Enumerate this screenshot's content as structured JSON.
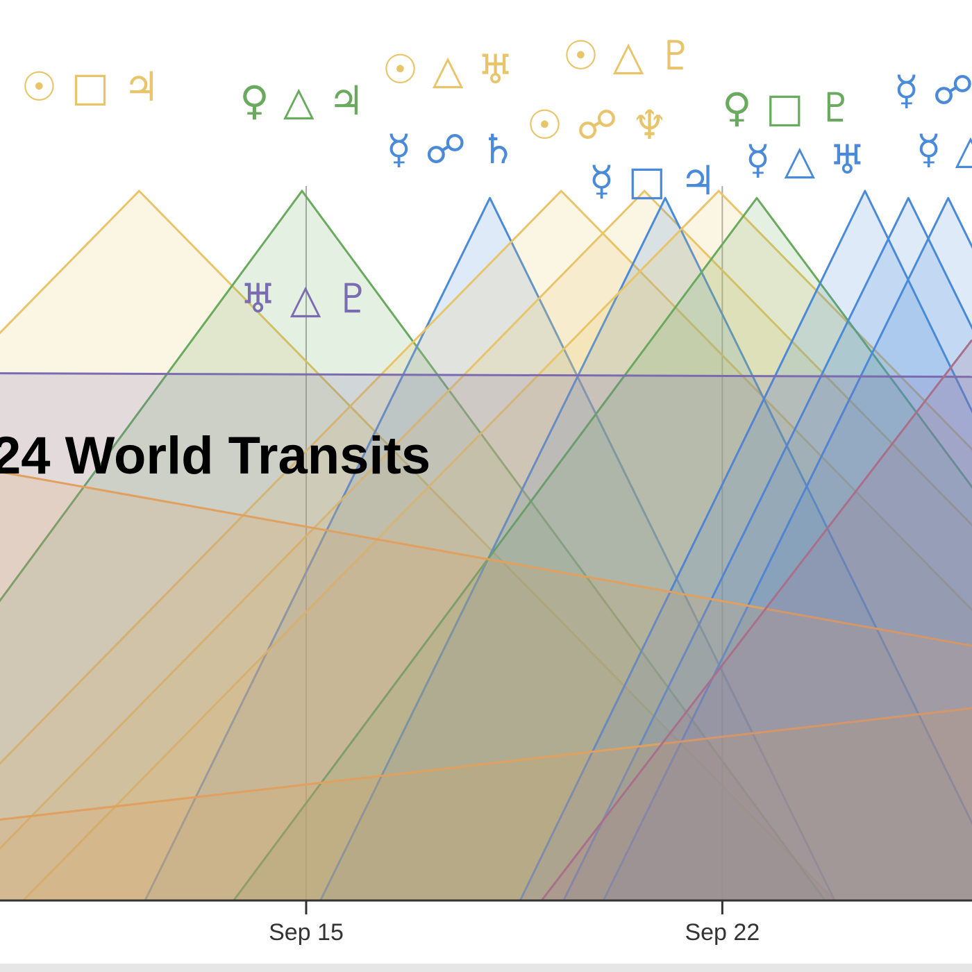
{
  "chart_data": {
    "type": "area",
    "title": "24 World Transits",
    "xlim": [
      9.85,
      26.2
    ],
    "ylim": [
      0,
      100
    ],
    "xticks": [
      {
        "value": 15,
        "label": "Sep 15"
      },
      {
        "value": 22,
        "label": "Sep 22"
      }
    ],
    "grid": true,
    "series": [
      {
        "color": "#e8c56b",
        "label": "☉ □ ♃",
        "x": [
          0.49,
          12.19,
          23.89
        ],
        "values": [
          0,
          100,
          0
        ]
      },
      {
        "color": "#6aaa5f",
        "label": "♀ △ ♃",
        "x": [
          6.13,
          14.93,
          23.73
        ],
        "values": [
          0,
          100,
          0
        ]
      },
      {
        "color": "#4a8ad8",
        "label": "☿ ☍ ♄",
        "x": [
          12.29,
          18.09,
          23.89
        ],
        "values": [
          0,
          99,
          0
        ]
      },
      {
        "color": "#e8c56b",
        "label": "☉ △ ♅",
        "x": [
          7.59,
          19.29,
          30.99
        ],
        "values": [
          0,
          100,
          0
        ]
      },
      {
        "color": "#e8c56b",
        "label": "☉ △ ♇",
        "x": [
          8.99,
          20.69,
          32.39
        ],
        "values": [
          0,
          100,
          0
        ]
      },
      {
        "color": "#4a8ad8",
        "label": "☿ □ ♃",
        "x": [
          15.24,
          21.04,
          26.84
        ],
        "values": [
          0,
          99,
          0
        ]
      },
      {
        "color": "#e8c56b",
        "label": "☉ ☍ ♆",
        "x": [
          10.24,
          21.94,
          33.64
        ],
        "values": [
          0,
          100,
          0
        ]
      },
      {
        "color": "#6aaa5f",
        "label": "♀ □ ♇",
        "x": [
          13.78,
          22.58,
          31.38
        ],
        "values": [
          0,
          99,
          0
        ]
      },
      {
        "color": "#4a8ad8",
        "label": "☿ △ ♅",
        "x": [
          18.6,
          24.4,
          30.2
        ],
        "values": [
          0,
          100,
          0
        ]
      },
      {
        "color": "#4a8ad8",
        "label": "☿ ☍",
        "x": [
          19.33,
          25.13,
          30.93
        ],
        "values": [
          0,
          99,
          0
        ]
      },
      {
        "color": "#4a8ad8",
        "label": "☿ △",
        "x": [
          20.0,
          25.8,
          31.6
        ],
        "values": [
          0,
          99,
          0
        ]
      },
      {
        "color": "#7b6bb0",
        "label": "♅ △ ♇",
        "x": [
          9.85,
          26.2
        ],
        "values": [
          74.3,
          73.8
        ]
      },
      {
        "color": "#e0a060",
        "x": [
          9.85,
          26.2
        ],
        "values": [
          60.4,
          35.9
        ]
      },
      {
        "color": "#e0a060",
        "x": [
          9.85,
          26.2
        ],
        "values": [
          11.4,
          27.1
        ]
      },
      {
        "color": "#a8708a",
        "x": [
          18.96,
          26.2
        ],
        "values": [
          0,
          79
        ]
      }
    ]
  }
}
